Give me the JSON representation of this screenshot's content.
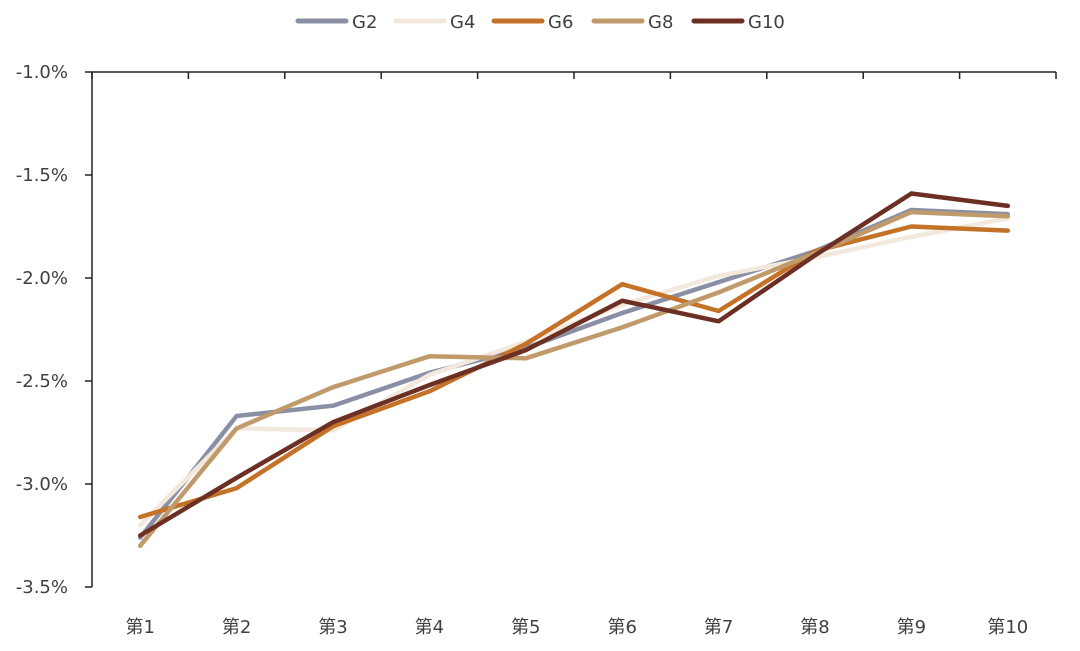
{
  "chart_data": {
    "type": "line",
    "title": "",
    "xlabel": "",
    "ylabel": "",
    "categories": [
      "第1",
      "第2",
      "第3",
      "第4",
      "第5",
      "第6",
      "第7",
      "第8",
      "第9",
      "第10"
    ],
    "ylim": [
      -3.5,
      -1.0
    ],
    "yticks": [
      -1.0,
      -1.5,
      -2.0,
      -2.5,
      -3.0,
      -3.5
    ],
    "ytick_labels": [
      "-1.0%",
      "-1.5%",
      "-2.0%",
      "-2.5%",
      "-3.0%",
      "-3.5%"
    ],
    "legend_position": "top-center",
    "grid": false,
    "series": [
      {
        "name": "G2",
        "color": "#8a8fa6",
        "values": [
          -3.26,
          -2.67,
          -2.62,
          -2.46,
          -2.34,
          -2.17,
          -2.02,
          -1.87,
          -1.67,
          -1.69
        ]
      },
      {
        "name": "G4",
        "color": "#f2e8dc",
        "values": [
          -3.2,
          -2.73,
          -2.74,
          -2.47,
          -2.31,
          -2.13,
          -1.99,
          -1.9,
          -1.8,
          -1.71
        ]
      },
      {
        "name": "G6",
        "color": "#c47228",
        "values": [
          -3.16,
          -3.02,
          -2.72,
          -2.55,
          -2.32,
          -2.03,
          -2.16,
          -1.87,
          -1.75,
          -1.77
        ]
      },
      {
        "name": "G8",
        "color": "#c09a6b",
        "values": [
          -3.3,
          -2.73,
          -2.53,
          -2.38,
          -2.39,
          -2.24,
          -2.07,
          -1.88,
          -1.68,
          -1.7
        ]
      },
      {
        "name": "G10",
        "color": "#6b2f24",
        "values": [
          -3.25,
          -2.97,
          -2.7,
          -2.52,
          -2.35,
          -2.11,
          -2.21,
          -1.89,
          -1.59,
          -1.65
        ]
      }
    ]
  }
}
